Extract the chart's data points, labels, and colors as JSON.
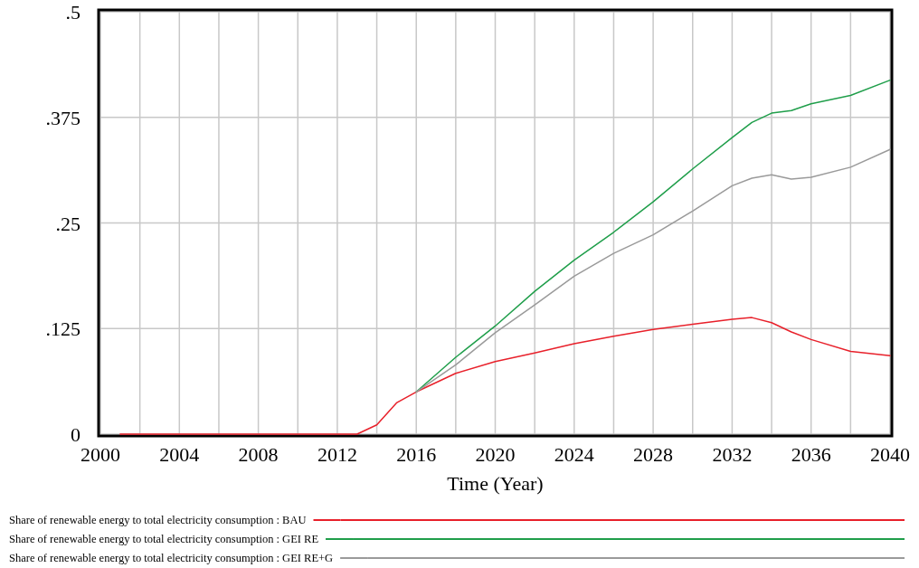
{
  "chart_data": {
    "type": "line",
    "xlabel": "Time (Year)",
    "x": [
      2001,
      2013,
      2014,
      2015,
      2016,
      2018,
      2020,
      2022,
      2024,
      2026,
      2028,
      2030,
      2032,
      2033,
      2034,
      2035,
      2036,
      2038,
      2040
    ],
    "series": [
      {
        "name": "Share of renewable energy to total electricity consumption : BAU",
        "color": "#e8202a",
        "values": [
          0,
          0,
          0.011,
          0.037,
          0.05,
          0.072,
          0.086,
          0.096,
          0.107,
          0.116,
          0.124,
          0.13,
          0.136,
          0.138,
          0.132,
          0.121,
          0.112,
          0.098,
          0.093
        ]
      },
      {
        "name": "Share of renewable energy to total electricity consumption : GEI RE",
        "color": "#1f9e4a",
        "values": [
          null,
          null,
          null,
          null,
          0.05,
          0.091,
          0.128,
          0.169,
          0.206,
          0.239,
          0.275,
          0.314,
          0.351,
          0.369,
          0.38,
          0.383,
          0.391,
          0.401,
          0.419
        ]
      },
      {
        "name": "Share of renewable energy to total electricity consumption : GEI RE+G",
        "color": "#9a9a9a",
        "values": [
          null,
          null,
          null,
          null,
          0.05,
          0.082,
          0.12,
          0.153,
          0.187,
          0.214,
          0.236,
          0.264,
          0.294,
          0.303,
          0.307,
          0.302,
          0.304,
          0.316,
          0.337
        ]
      }
    ],
    "xlim": [
      2000,
      2040
    ],
    "xticks": [
      2000,
      {
        "value": 2002,
        "label": null
      },
      2004,
      {
        "value": 2006,
        "label": null
      },
      2008,
      {
        "value": 2010,
        "label": null
      },
      2012,
      {
        "value": 2014,
        "label": null
      },
      2016,
      {
        "value": 2018,
        "label": null
      },
      2020,
      {
        "value": 2022,
        "label": null
      },
      2024,
      {
        "value": 2026,
        "label": null
      },
      2028,
      {
        "value": 2030,
        "label": null
      },
      2032,
      {
        "value": 2034,
        "label": null
      },
      2036,
      {
        "value": 2038,
        "label": null
      },
      2040
    ],
    "ylim": [
      0,
      0.5
    ],
    "yticks": [
      0,
      {
        "value": 0.125,
        "label": ".125"
      },
      {
        "value": 0.25,
        "label": ".25"
      },
      {
        "value": 0.375,
        "label": ".375"
      },
      {
        "value": 0.5,
        "label": ".5"
      }
    ],
    "grid": true,
    "legend": "bottom",
    "marker": "none",
    "line_style": "solid"
  }
}
